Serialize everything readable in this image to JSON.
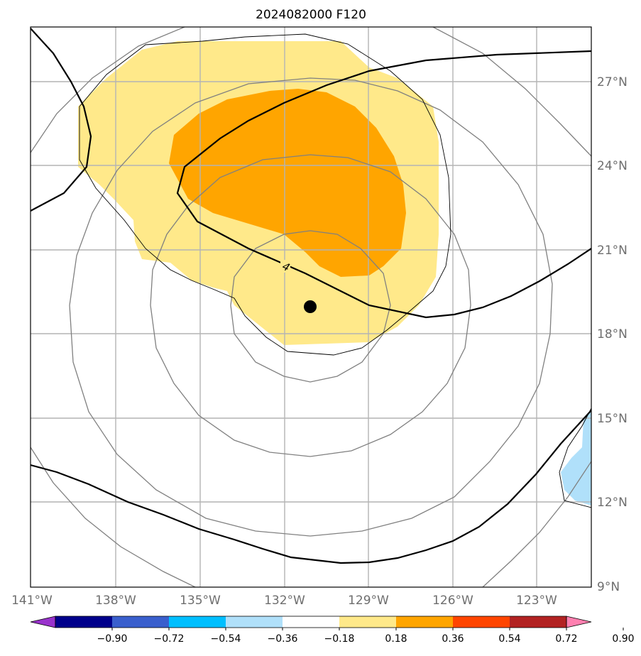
{
  "title": "2024082000 F120",
  "map": {
    "lon_range": [
      -141,
      -121
    ],
    "lat_range": [
      9,
      29
    ],
    "lon_ticks": [
      "141°W",
      "138°W",
      "135°W",
      "132°W",
      "129°W",
      "126°W",
      "123°W"
    ],
    "lat_ticks": [
      "9°N",
      "12°N",
      "15°N",
      "18°N",
      "21°N",
      "24°N",
      "27°N"
    ],
    "gridlines": true,
    "storm_center": {
      "lon": -131.0,
      "lat": 19.0
    },
    "contour_label": "4",
    "fill_colors": {
      "light_yellow": "#ffe98a",
      "orange": "#ffa500",
      "light_blue": "#b0e0fa"
    }
  },
  "colorbar": {
    "tick_labels": [
      "−0.90",
      "−0.72",
      "−0.54",
      "−0.36",
      "−0.18",
      "0.18",
      "0.36",
      "0.54",
      "0.72",
      "0.90"
    ],
    "colors": [
      "#9932cc",
      "#00008b",
      "#3a5fcd",
      "#00bfff",
      "#b0e0fa",
      "#ffffff",
      "#ffe98a",
      "#ffa500",
      "#ff4500",
      "#b22222",
      "#ff80b0"
    ]
  }
}
